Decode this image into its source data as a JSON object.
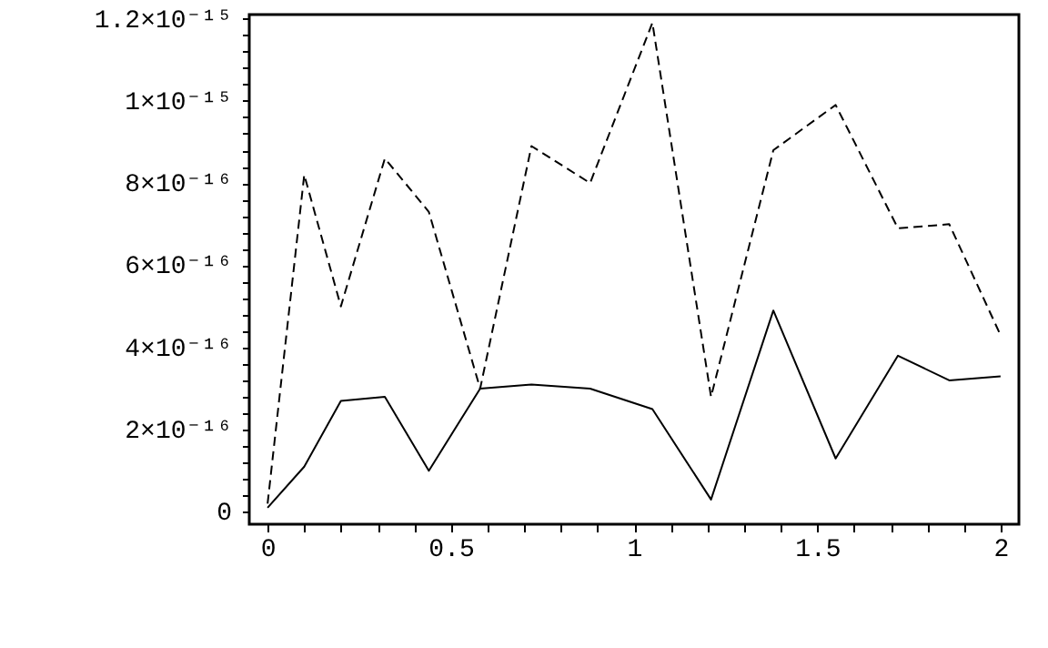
{
  "chart_data": {
    "type": "line",
    "xlim": [
      -0.05,
      2.05
    ],
    "xticks": [
      0,
      {
        "value": 0.1,
        "label": null
      },
      {
        "value": 0.2,
        "label": null
      },
      {
        "value": 0.3,
        "label": null
      },
      {
        "value": 0.4,
        "label": null
      },
      0.5,
      {
        "value": 0.6,
        "label": null
      },
      {
        "value": 0.7,
        "label": null
      },
      {
        "value": 0.8,
        "label": null
      },
      {
        "value": 0.9,
        "label": null
      },
      1,
      {
        "value": 1.1,
        "label": null
      },
      {
        "value": 1.2,
        "label": null
      },
      {
        "value": 1.3,
        "label": null
      },
      {
        "value": 1.4,
        "label": null
      },
      1.5,
      {
        "value": 1.6,
        "label": null
      },
      {
        "value": 1.7,
        "label": null
      },
      {
        "value": 1.8,
        "label": null
      },
      {
        "value": 1.9,
        "label": null
      },
      2
    ],
    "ylim": [
      -3e-17,
      1.21e-15
    ],
    "yticks": [
      {
        "value": 0,
        "label": "0"
      },
      {
        "value": 4e-17,
        "label": null
      },
      {
        "value": 8e-17,
        "label": null
      },
      {
        "value": 1.2e-16,
        "label": null
      },
      {
        "value": 1.6e-16,
        "label": null
      },
      {
        "value": 2e-16,
        "label": "2×10⁻¹⁶"
      },
      {
        "value": 2.4e-16,
        "label": null
      },
      {
        "value": 2.8e-16,
        "label": null
      },
      {
        "value": 3.2e-16,
        "label": null
      },
      {
        "value": 3.6e-16,
        "label": null
      },
      {
        "value": 4e-16,
        "label": "4×10⁻¹⁶"
      },
      {
        "value": 4.4e-16,
        "label": null
      },
      {
        "value": 4.8e-16,
        "label": null
      },
      {
        "value": 5.2e-16,
        "label": null
      },
      {
        "value": 5.6e-16,
        "label": null
      },
      {
        "value": 6e-16,
        "label": "6×10⁻¹⁶"
      },
      {
        "value": 6.4e-16,
        "label": null
      },
      {
        "value": 6.8e-16,
        "label": null
      },
      {
        "value": 7.2e-16,
        "label": null
      },
      {
        "value": 7.6e-16,
        "label": null
      },
      {
        "value": 8e-16,
        "label": "8×10⁻¹⁶"
      },
      {
        "value": 8.4e-16,
        "label": null
      },
      {
        "value": 8.8e-16,
        "label": null
      },
      {
        "value": 9.2e-16,
        "label": null
      },
      {
        "value": 9.6e-16,
        "label": null
      },
      {
        "value": 1e-15,
        "label": "1×10⁻¹⁵"
      },
      {
        "value": 1.04e-15,
        "label": null
      },
      {
        "value": 1.08e-15,
        "label": null
      },
      {
        "value": 1.12e-15,
        "label": null
      },
      {
        "value": 1.16e-15,
        "label": null
      },
      {
        "value": 1.2e-15,
        "label": "1.2×10⁻¹⁵"
      }
    ],
    "x": [
      0,
      0.1,
      0.2,
      0.32,
      0.44,
      0.58,
      0.72,
      0.88,
      1.05,
      1.21,
      1.38,
      1.55,
      1.72,
      1.86,
      2.0
    ],
    "series": [
      {
        "color": "#000000",
        "line_style": "dashed",
        "values": [
          2e-17,
          8.2e-16,
          5e-16,
          8.6e-16,
          7.3e-16,
          3e-16,
          8.9e-16,
          8e-16,
          1.19e-15,
          2.8e-16,
          8.8e-16,
          9.9e-16,
          6.9e-16,
          7e-16,
          4.3e-16
        ]
      },
      {
        "color": "#000000",
        "line_style": "solid",
        "values": [
          1e-17,
          1.1e-16,
          2.7e-16,
          2.8e-16,
          1e-16,
          3e-16,
          3.1e-16,
          3e-16,
          2.5e-16,
          3e-17,
          4.9e-16,
          1.3e-16,
          3.8e-16,
          3.2e-16,
          3.3e-16
        ]
      }
    ],
    "grid": false,
    "marker": "none"
  }
}
